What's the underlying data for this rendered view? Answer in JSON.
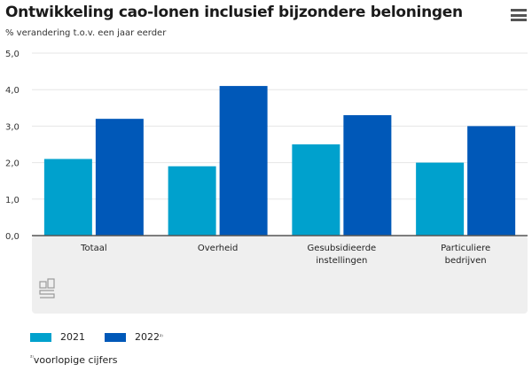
{
  "header": {
    "title": "Ontwikkeling cao-lonen inclusief bijzondere beloningen",
    "subtitle": "% verandering t.o.v. een jaar eerder",
    "menu_icon": "hamburger-menu-icon"
  },
  "chart_data": {
    "type": "bar",
    "title": "Ontwikkeling cao-lonen inclusief bijzondere beloningen",
    "ylabel": "% verandering t.o.v. een jaar eerder",
    "xlabel": "",
    "ylim": [
      0,
      5
    ],
    "yticks": [
      "0,0",
      "1,0",
      "2,0",
      "3,0",
      "4,0",
      "5,0"
    ],
    "grid": true,
    "legend_position": "bottom-left",
    "categories": [
      [
        "Totaal"
      ],
      [
        "Overheid"
      ],
      [
        "Gesubsidieerde",
        "instellingen"
      ],
      [
        "Particuliere",
        "bedrijven"
      ]
    ],
    "series": [
      {
        "name": "2021",
        "sup": "",
        "color": "#00a1cd",
        "values": [
          2.1,
          1.9,
          2.5,
          2.0
        ]
      },
      {
        "name": "2022",
        "sup": "²⁾",
        "color": "#0058b8",
        "values": [
          3.2,
          4.1,
          3.3,
          3.0
        ]
      }
    ]
  },
  "legend": {
    "items": [
      {
        "label": "2021",
        "sup": ""
      },
      {
        "label": "2022",
        "sup": "²⁾"
      }
    ]
  },
  "footnote": {
    "sup": "²⁾",
    "text": "voorlopige cijfers"
  },
  "logo": {
    "name": "cbs",
    "icon": "cbs-logo-icon"
  }
}
